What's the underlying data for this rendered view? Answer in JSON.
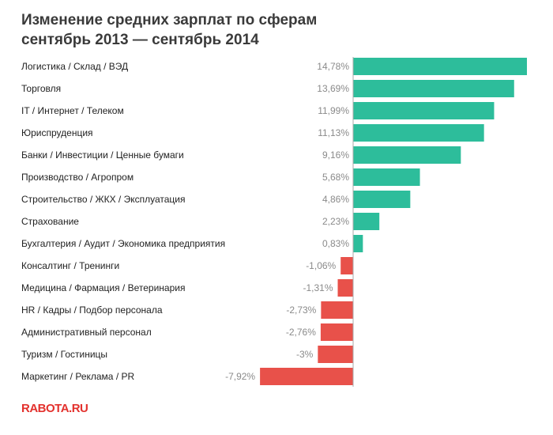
{
  "title": {
    "line1": "Изменение средних зарплат по сферам",
    "line2": "сентябрь 2013 — сентябрь 2014"
  },
  "logo": "RABOTA.RU",
  "colors": {
    "positive": "#2dbd9b",
    "negative": "#e8514a",
    "axis": "#aaaaaa"
  },
  "chart_data": {
    "type": "bar",
    "orientation": "horizontal",
    "categories": [
      "Логистика / Склад / ВЭД",
      "Торговля",
      "IT / Интернет / Телеком",
      "Юриспруденция",
      "Банки / Инвестиции / Ценные бумаги",
      "Производство / Агропром",
      "Строительство / ЖКХ / Эксплуатация",
      "Страхование",
      "Бухгалтерия / Аудит / Экономика предприятия",
      "Консалтинг / Тренинги",
      "Медицина / Фармация / Ветеринария",
      "HR / Кадры / Подбор персонала",
      "Административный персонал",
      "Туризм / Гостиницы",
      "Маркетинг / Реклама / PR"
    ],
    "values": [
      14.78,
      13.69,
      11.99,
      11.13,
      9.16,
      5.68,
      4.86,
      2.23,
      0.83,
      -1.06,
      -1.31,
      -2.73,
      -2.76,
      -3,
      -7.92
    ],
    "labels": [
      "14,78%",
      "13,69%",
      "11,99%",
      "11,13%",
      "9,16%",
      "5,68%",
      "4,86%",
      "2,23%",
      "0,83%",
      "-1,06%",
      "-1,31%",
      "-2,73%",
      "-2,76%",
      "-3%",
      "-7,92%"
    ],
    "title": "Изменение средних зарплат по сферам сентябрь 2013 — сентябрь 2014",
    "xlabel": "",
    "ylabel": "",
    "xlim": [
      -7.92,
      14.78
    ],
    "grid": false,
    "legend": "none"
  }
}
